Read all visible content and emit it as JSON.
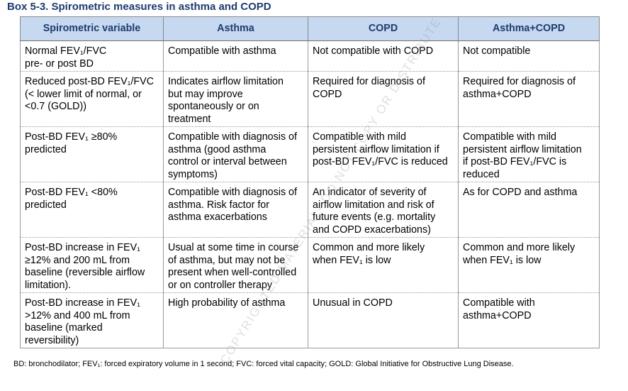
{
  "title": "Box 5-3. Spirometric measures in asthma and COPD",
  "headers": [
    "Spirometric variable",
    "Asthma",
    "COPD",
    "Asthma+COPD"
  ],
  "rows": [
    {
      "variable": "Normal FEV₁/FVC\npre- or post BD",
      "asthma": "Compatible with asthma",
      "copd": "Not compatible with COPD",
      "asthma_copd": "Not compatible"
    },
    {
      "variable": "Reduced post-BD FEV₁/FVC\n(< lower limit of normal, or\n<0.7 (GOLD))",
      "asthma": "Indicates airflow limitation\nbut may improve\nspontaneously or on\ntreatment",
      "copd": "Required for diagnosis of\nCOPD",
      "asthma_copd": "Required for diagnosis of\nasthma+COPD"
    },
    {
      "variable": "Post-BD FEV₁ ≥80%\npredicted",
      "asthma": "Compatible with diagnosis of\nasthma (good asthma\ncontrol or interval between\nsymptoms)",
      "copd": "Compatible with mild\npersistent airflow limitation if\npost-BD FEV₁/FVC is reduced",
      "asthma_copd": "Compatible with mild\npersistent airflow limitation\nif post-BD FEV₁/FVC is\nreduced"
    },
    {
      "variable": "Post-BD FEV₁ <80%\npredicted",
      "asthma": "Compatible with diagnosis of\nasthma. Risk factor for\nasthma exacerbations",
      "copd": "An indicator of severity of\nairflow limitation and risk of\nfuture events (e.g. mortality\nand COPD exacerbations)",
      "asthma_copd": "As for COPD and asthma"
    },
    {
      "variable": "Post-BD increase in FEV₁\n≥12% and 200 mL from\nbaseline (reversible airflow\nlimitation).",
      "asthma": "Usual at some time in course\nof asthma, but may not be\npresent when well-controlled\nor on controller therapy",
      "copd": "Common and more likely\nwhen FEV₁ is low",
      "asthma_copd": "Common and more likely\nwhen FEV₁ is low"
    },
    {
      "variable": "Post-BD increase in FEV₁\n>12% and 400 mL from\nbaseline (marked\nreversibility)",
      "asthma": "High probability of asthma",
      "copd": "Unusual in COPD",
      "asthma_copd": "Compatible with\nasthma+COPD"
    }
  ],
  "footnote": "BD: bronchodilator; FEV₁: forced expiratory volume in 1 second; FVC: forced vital capacity; GOLD: Global Initiative for Obstructive Lung Disease.",
  "watermark": "COPYRIGHTED MATERIAL- DO NOT COPY OR DISTRIBUTE",
  "colors": {
    "header_bg": "#c6d9f1",
    "title_text": "#1f3b6e"
  }
}
